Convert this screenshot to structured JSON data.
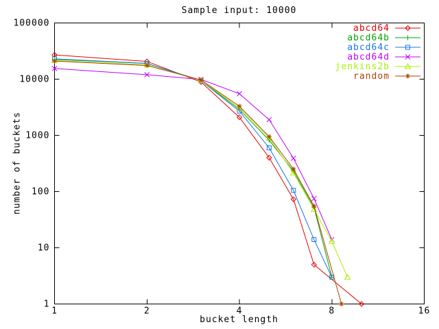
{
  "chart_data": {
    "type": "line",
    "title": "Sample input: 10000",
    "xlabel": "bucket length",
    "ylabel": "number of buckets",
    "x_scale": "log2",
    "y_scale": "log10",
    "xlim": [
      1,
      16
    ],
    "ylim": [
      1,
      100000
    ],
    "x_ticks": [
      1,
      2,
      4,
      8,
      16
    ],
    "y_ticks": [
      1,
      10,
      100,
      1000,
      10000,
      100000
    ],
    "grid": false,
    "legend_position": "top-right-inside",
    "series": [
      {
        "name": "abcd64",
        "color": "#e60000",
        "marker": "diamond",
        "points": [
          [
            1,
            27000
          ],
          [
            2,
            20700
          ],
          [
            3,
            8900
          ],
          [
            4,
            2100
          ],
          [
            5,
            400
          ],
          [
            6,
            73
          ],
          [
            7,
            5
          ],
          [
            10,
            1
          ]
        ]
      },
      {
        "name": "abcd64b",
        "color": "#00a800",
        "marker": "plus",
        "points": [
          [
            1,
            22500
          ],
          [
            2,
            19000
          ],
          [
            3,
            9500
          ],
          [
            4,
            2900
          ],
          [
            5,
            820
          ],
          [
            6,
            230
          ],
          [
            7,
            52
          ],
          [
            8,
            3
          ]
        ]
      },
      {
        "name": "abcd64c",
        "color": "#1874e8",
        "marker": "square",
        "points": [
          [
            1,
            23000
          ],
          [
            2,
            19100
          ],
          [
            3,
            9400
          ],
          [
            4,
            2700
          ],
          [
            5,
            600
          ],
          [
            6,
            105
          ],
          [
            7,
            14
          ],
          [
            8,
            3
          ]
        ]
      },
      {
        "name": "abcd64d",
        "color": "#bf00ff",
        "marker": "x",
        "points": [
          [
            1,
            15500
          ],
          [
            2,
            12000
          ],
          [
            3,
            9900
          ],
          [
            4,
            5500
          ],
          [
            5,
            1900
          ],
          [
            6,
            390
          ],
          [
            7,
            75
          ],
          [
            8,
            14
          ]
        ]
      },
      {
        "name": "jenkins2b",
        "color": "#a8f000",
        "marker": "triangle",
        "points": [
          [
            1,
            21500
          ],
          [
            2,
            18000
          ],
          [
            3,
            9500
          ],
          [
            4,
            3100
          ],
          [
            5,
            900
          ],
          [
            6,
            215
          ],
          [
            7,
            48
          ],
          [
            8,
            13
          ],
          [
            9,
            3
          ]
        ]
      },
      {
        "name": "random",
        "color": "#b04000",
        "marker": "star",
        "points": [
          [
            1,
            21000
          ],
          [
            2,
            17500
          ],
          [
            3,
            9700
          ],
          [
            4,
            3300
          ],
          [
            5,
            950
          ],
          [
            6,
            252
          ],
          [
            7,
            55
          ],
          [
            8.6,
            1
          ]
        ]
      }
    ]
  },
  "layout_text": {
    "title": "Sample input: 10000",
    "xlabel": "bucket length",
    "ylabel": "number of buckets"
  }
}
